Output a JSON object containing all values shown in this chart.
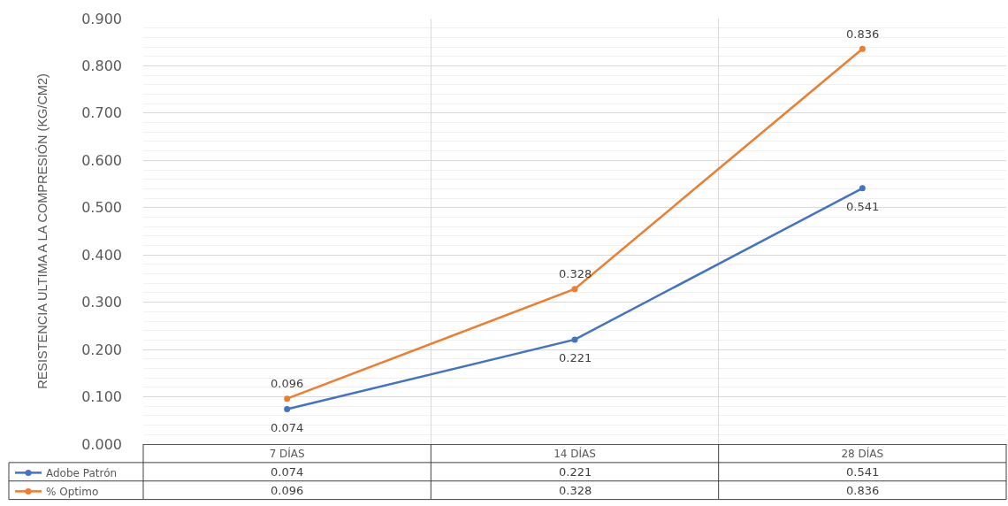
{
  "chart_data": {
    "type": "line",
    "ylabel": "RESISTENCIA ULTIMA A LA COMPRESIÓN (KG/CM2)",
    "categories": [
      "7 DÍAS",
      "14 DÍAS",
      "28 DÍAS"
    ],
    "series": [
      {
        "name": "Adobe Patrón",
        "color": "#4472c4",
        "values": [
          0.074,
          0.221,
          0.541
        ]
      },
      {
        "name": "% Optimo",
        "color": "#ed7d31",
        "values": [
          0.096,
          0.328,
          0.836
        ]
      }
    ],
    "ylim": [
      0,
      0.9
    ],
    "yticks": [
      {
        "value": 0,
        "label": "0.000"
      },
      {
        "value": 0.1,
        "label": "0.100"
      },
      {
        "value": 0.2,
        "label": "0.200"
      },
      {
        "value": 0.3,
        "label": "0.300"
      },
      {
        "value": 0.4,
        "label": "0.400"
      },
      {
        "value": 0.5,
        "label": "0.500"
      },
      {
        "value": 0.6,
        "label": "0.600"
      },
      {
        "value": 0.7,
        "label": "0.700"
      },
      {
        "value": 0.8,
        "label": "0.800"
      },
      {
        "value": 0.9,
        "label": "0.900"
      }
    ],
    "annotations": [
      "0.074",
      "0.221",
      "0.541",
      "0.096",
      "0.328",
      "0.836"
    ],
    "grid": true,
    "legend": "bottom left",
    "marker": "circle",
    "line_style": "solid",
    "data_labels": true
  }
}
